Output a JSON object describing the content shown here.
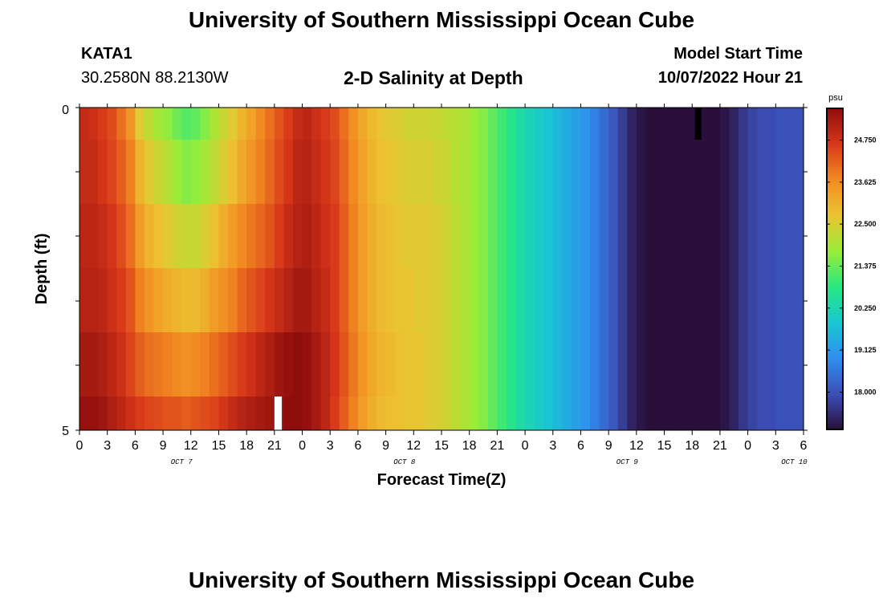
{
  "header": {
    "title": "University of Southern Mississippi Ocean Cube",
    "station": "KATA1",
    "coordinates": "30.2580N  88.2130W",
    "subtitle": "2-D Salinity at Depth",
    "model_start_label": "Model Start Time",
    "model_start_value": "10/07/2022 Hour 21"
  },
  "footer": {
    "title": "University of Southern Mississippi Ocean Cube"
  },
  "chart_data": {
    "type": "heatmap",
    "title": "2-D Salinity at Depth",
    "xlabel": "Forecast Time(Z)",
    "ylabel": "Depth (ft)",
    "x_tick_labels": [
      "0",
      "3",
      "6",
      "9",
      "12",
      "15",
      "18",
      "21",
      "0",
      "3",
      "6",
      "9",
      "12",
      "15",
      "18",
      "21",
      "0",
      "3",
      "6",
      "9",
      "12",
      "15",
      "18",
      "21",
      "0",
      "3",
      "6"
    ],
    "day_labels": [
      {
        "label": "OCT 7",
        "hour": 11
      },
      {
        "label": "OCT 8",
        "hour": 35
      },
      {
        "label": "OCT 9",
        "hour": 59
      },
      {
        "label": "OCT 10",
        "hour": 77
      }
    ],
    "x_range_hours": [
      0,
      78
    ],
    "y_range_ft": [
      0,
      5
    ],
    "y_tick_labels": [
      "0",
      "5"
    ],
    "depth_layers_ft": [
      0,
      0.5,
      1.5,
      2.5,
      3.5,
      4.5
    ],
    "colorbar": {
      "unit": "psu",
      "ticks": [
        "24.750",
        "23.625",
        "22.500",
        "21.375",
        "20.250",
        "19.125",
        "18.000"
      ],
      "range": [
        17.0,
        25.6
      ],
      "colors": [
        "#2a0f3a",
        "#3c4fb8",
        "#2f8ef0",
        "#18c8d0",
        "#27e882",
        "#9aec38",
        "#ecc432",
        "#f28b22",
        "#d8371a",
        "#8e0d0d"
      ]
    },
    "missing_cells": [
      {
        "hour_start": 21,
        "hour_end": 21.8,
        "layer": 5,
        "color": "#ffffff"
      },
      {
        "hour_start": 66.3,
        "hour_end": 67.0,
        "layer": 0,
        "color": "#000000"
      }
    ],
    "series": [
      {
        "name": "surface",
        "depth_ft": 0,
        "values": [
          24.9,
          24.8,
          24.6,
          24.4,
          24.0,
          23.5,
          22.6,
          22.2,
          21.9,
          21.7,
          21.4,
          21.2,
          21.3,
          21.6,
          22.0,
          22.3,
          22.6,
          23.0,
          23.3,
          23.7,
          24.0,
          24.3,
          24.6,
          24.9,
          25.0,
          24.8,
          24.6,
          24.4,
          24.0,
          23.6,
          23.2,
          22.9,
          22.7,
          22.6,
          22.5,
          22.4,
          22.4,
          22.4,
          22.3,
          22.2,
          22.1,
          22.0,
          21.8,
          21.6,
          21.3,
          21.0,
          20.7,
          20.4,
          20.2,
          20.0,
          19.8,
          19.6,
          19.4,
          19.2,
          19.0,
          18.7,
          18.4,
          18.1,
          17.7,
          17.3,
          17.1,
          17.0,
          17.0,
          17.0,
          17.0,
          17.0,
          17.0,
          17.0,
          17.0,
          17.1,
          17.3,
          17.6,
          17.8,
          17.9,
          17.9,
          18.0,
          18.0,
          18.0
        ]
      },
      {
        "name": "layer-2",
        "depth_ft": 0.5,
        "values": [
          24.9,
          24.9,
          24.7,
          24.5,
          24.2,
          23.8,
          23.0,
          22.6,
          22.3,
          22.1,
          21.8,
          21.6,
          21.7,
          21.9,
          22.2,
          22.5,
          22.8,
          23.2,
          23.5,
          23.8,
          24.1,
          24.4,
          24.7,
          25.0,
          25.1,
          24.9,
          24.7,
          24.5,
          24.1,
          23.7,
          23.3,
          23.0,
          22.8,
          22.7,
          22.6,
          22.5,
          22.5,
          22.5,
          22.4,
          22.3,
          22.1,
          22.0,
          21.8,
          21.6,
          21.3,
          21.0,
          20.7,
          20.4,
          20.2,
          20.0,
          19.8,
          19.6,
          19.4,
          19.2,
          19.0,
          18.7,
          18.4,
          18.1,
          17.7,
          17.3,
          17.1,
          17.0,
          17.0,
          17.0,
          17.0,
          17.0,
          17.0,
          17.0,
          17.0,
          17.1,
          17.3,
          17.6,
          17.8,
          17.9,
          17.9,
          18.0,
          18.0,
          18.0
        ]
      },
      {
        "name": "layer-3",
        "depth_ft": 1.5,
        "values": [
          25.0,
          25.0,
          24.9,
          24.7,
          24.4,
          24.0,
          23.4,
          23.0,
          22.8,
          22.6,
          22.4,
          22.3,
          22.3,
          22.5,
          22.8,
          23.1,
          23.4,
          23.7,
          23.9,
          24.1,
          24.3,
          24.6,
          24.9,
          25.1,
          25.2,
          25.0,
          24.8,
          24.6,
          24.2,
          23.8,
          23.4,
          23.1,
          22.9,
          22.8,
          22.7,
          22.6,
          22.6,
          22.6,
          22.5,
          22.4,
          22.2,
          22.0,
          21.8,
          21.6,
          21.3,
          21.0,
          20.7,
          20.4,
          20.2,
          20.0,
          19.8,
          19.6,
          19.4,
          19.2,
          19.0,
          18.7,
          18.4,
          18.1,
          17.7,
          17.3,
          17.1,
          17.0,
          17.0,
          17.0,
          17.0,
          17.0,
          17.0,
          17.0,
          17.0,
          17.1,
          17.3,
          17.6,
          17.8,
          17.9,
          17.9,
          18.0,
          18.0,
          18.0
        ]
      },
      {
        "name": "layer-4",
        "depth_ft": 2.5,
        "values": [
          25.1,
          25.1,
          25.0,
          24.8,
          24.6,
          24.3,
          23.8,
          23.5,
          23.3,
          23.1,
          23.0,
          22.9,
          22.9,
          23.1,
          23.4,
          23.6,
          23.8,
          24.1,
          24.3,
          24.5,
          24.7,
          24.9,
          25.1,
          25.3,
          25.3,
          25.1,
          24.9,
          24.6,
          24.2,
          23.8,
          23.4,
          23.1,
          22.9,
          22.8,
          22.7,
          22.7,
          22.6,
          22.6,
          22.5,
          22.4,
          22.2,
          22.0,
          21.8,
          21.6,
          21.3,
          21.0,
          20.7,
          20.4,
          20.2,
          20.0,
          19.8,
          19.6,
          19.4,
          19.2,
          19.0,
          18.7,
          18.4,
          18.1,
          17.7,
          17.3,
          17.1,
          17.0,
          17.0,
          17.0,
          17.0,
          17.0,
          17.0,
          17.0,
          17.0,
          17.1,
          17.3,
          17.6,
          17.8,
          17.9,
          17.9,
          18.0,
          18.0,
          18.0
        ]
      },
      {
        "name": "layer-5",
        "depth_ft": 3.5,
        "values": [
          25.3,
          25.3,
          25.2,
          25.0,
          24.8,
          24.5,
          24.2,
          24.0,
          23.9,
          23.8,
          23.7,
          23.6,
          23.7,
          23.8,
          24.0,
          24.2,
          24.4,
          24.6,
          24.8,
          25.0,
          25.2,
          25.4,
          25.5,
          25.6,
          25.5,
          25.3,
          25.0,
          24.7,
          24.3,
          23.9,
          23.5,
          23.2,
          23.0,
          22.9,
          22.8,
          22.7,
          22.7,
          22.6,
          22.5,
          22.4,
          22.2,
          22.0,
          21.8,
          21.6,
          21.3,
          21.0,
          20.7,
          20.4,
          20.2,
          20.0,
          19.8,
          19.6,
          19.4,
          19.2,
          19.0,
          18.7,
          18.4,
          18.1,
          17.7,
          17.3,
          17.1,
          17.0,
          17.0,
          17.0,
          17.0,
          17.0,
          17.0,
          17.0,
          17.0,
          17.1,
          17.3,
          17.6,
          17.8,
          17.9,
          17.9,
          18.0,
          18.0,
          18.0
        ]
      },
      {
        "name": "bottom",
        "depth_ft": 4.5,
        "values": [
          25.5,
          25.5,
          25.4,
          25.2,
          25.0,
          24.8,
          24.6,
          24.5,
          24.4,
          24.3,
          24.3,
          24.2,
          24.3,
          24.4,
          24.5,
          24.7,
          24.9,
          25.1,
          25.2,
          25.3,
          25.4,
          25.5,
          25.6,
          25.6,
          25.5,
          25.3,
          25.0,
          24.6,
          24.2,
          23.8,
          23.4,
          23.1,
          22.9,
          22.8,
          22.8,
          22.7,
          22.7,
          22.6,
          22.5,
          22.4,
          22.2,
          22.0,
          21.8,
          21.6,
          21.3,
          21.0,
          20.7,
          20.4,
          20.2,
          20.0,
          19.8,
          19.6,
          19.4,
          19.2,
          19.0,
          18.7,
          18.4,
          18.1,
          17.7,
          17.3,
          17.1,
          17.0,
          17.0,
          17.0,
          17.0,
          17.0,
          17.0,
          17.0,
          17.0,
          17.1,
          17.3,
          17.6,
          17.8,
          17.9,
          17.9,
          18.0,
          18.0,
          18.0
        ]
      }
    ]
  }
}
